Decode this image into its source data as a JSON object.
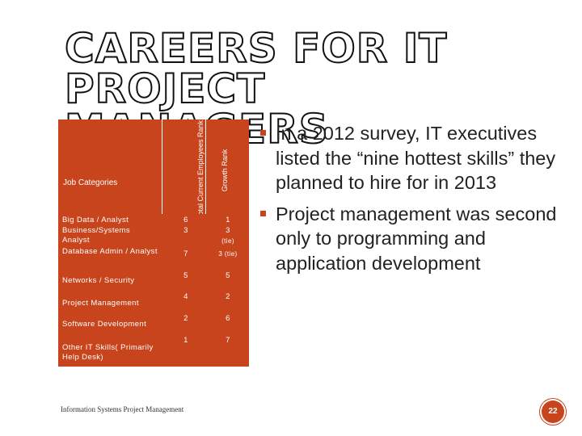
{
  "slide": {
    "title_line1": "CAREERS FOR IT PROJECT",
    "title_line2": "MANAGERS",
    "footer": "Information Systems Project Management",
    "page_number": "22"
  },
  "table": {
    "headers": {
      "category": "Job Categories",
      "total_rank": "Total Current Employees Rank",
      "growth_rank": "Growth Rank"
    },
    "rows": [
      {
        "category": "Big Data / Analyst",
        "total": "6",
        "growth": "1",
        "growth_note": ""
      },
      {
        "category": "Business/Systems Analyst",
        "total": "3",
        "growth": "3",
        "growth_note": "(tie)"
      },
      {
        "category": "Database Admin / Analyst",
        "total": "7",
        "growth": "3 (tie)",
        "growth_note": ""
      },
      {
        "category": "Networks / Security",
        "total": "5",
        "growth": "5",
        "growth_note": ""
      },
      {
        "category": "Project Management",
        "total": "4",
        "growth": "2",
        "growth_note": ""
      },
      {
        "category": "Software Development",
        "total": "2",
        "growth": "6",
        "growth_note": ""
      },
      {
        "category": "Other IT Skills( Primarily Help Desk)",
        "total": "1",
        "growth": "7",
        "growth_note": ""
      }
    ]
  },
  "bullets": [
    {
      "text": "In a 2012 survey, IT executives listed the “nine hottest skills” they planned to hire for in 2013"
    },
    {
      "text": "Project management was second only to programming and application development"
    }
  ],
  "colors": {
    "accent": "#c8441c",
    "text": "#222222"
  }
}
